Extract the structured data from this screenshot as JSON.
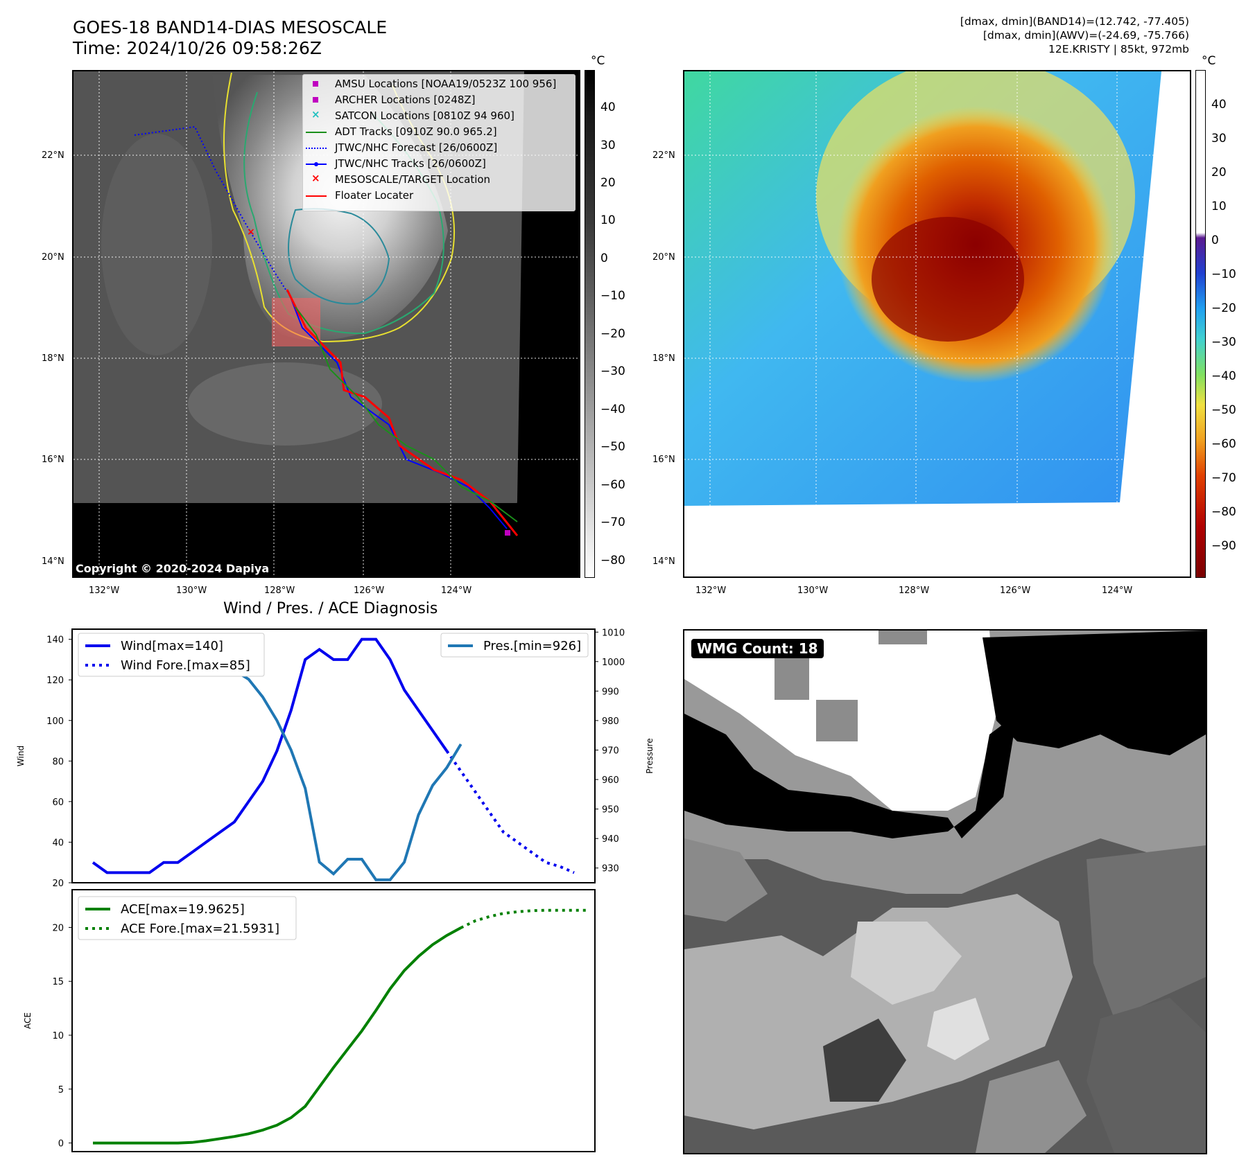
{
  "header": {
    "title_line1": "GOES-18 BAND14-DIAS MESOSCALE",
    "title_line2": "Time: 2024/10/26 09:58:26Z",
    "info_line1": "[dmax, dmin](BAND14)=(12.742, -77.405)",
    "info_line2": "[dmax, dmin](AWV)=(-24.69, -75.766)",
    "info_line3": "12E.KRISTY | 85kt, 972mb"
  },
  "map_axes": {
    "lat_labels": [
      "22°N",
      "20°N",
      "18°N",
      "16°N",
      "14°N"
    ],
    "lon_labels": [
      "132°W",
      "130°W",
      "128°W",
      "126°W",
      "124°W"
    ]
  },
  "ir_map": {
    "copyright": "Copyright © 2020-2024 Dapiya",
    "colorbar_unit": "°C",
    "colorbar_ticks": [
      "40",
      "30",
      "20",
      "10",
      "0",
      "−10",
      "−20",
      "−30",
      "−40",
      "−50",
      "−60",
      "−70",
      "−80"
    ],
    "legend": [
      {
        "label": "AMSU Locations [NOAA19/0523Z 100 956]",
        "marker": "square",
        "color": "#c000c0"
      },
      {
        "label": "ARCHER Locations [0248Z]",
        "marker": "square",
        "color": "#c000c0"
      },
      {
        "label": "SATCON Locations [0810Z 94 960]",
        "marker": "x",
        "color": "#20c0c0"
      },
      {
        "label": "ADT Tracks [0910Z 90.0 965.2]",
        "marker": "line",
        "color": "#1a8f1a"
      },
      {
        "label": "JTWC/NHC Forecast [26/0600Z]",
        "marker": "dotted",
        "color": "#0000ff"
      },
      {
        "label": "JTWC/NHC Tracks [26/0600Z]",
        "marker": "line-dot",
        "color": "#0000ff"
      },
      {
        "label": "MESOSCALE/TARGET Location",
        "marker": "x",
        "color": "#ff0000"
      },
      {
        "label": "Floater Locater",
        "marker": "line",
        "color": "#ff0000"
      }
    ]
  },
  "awv_map": {
    "colorbar_unit": "°C",
    "colorbar_ticks": [
      "40",
      "30",
      "20",
      "10",
      "0",
      "−10",
      "−20",
      "−30",
      "−40",
      "−50",
      "−60",
      "−70",
      "−80",
      "−90"
    ]
  },
  "wmg": {
    "badge": "WMG Count: 18"
  },
  "colors": {
    "wind": "#0000ee",
    "pressure": "#1f77b4",
    "ace": "#008000"
  },
  "chart_data": [
    {
      "type": "line",
      "title": "Wind / Pres. / ACE Diagnosis",
      "ylabel": "Wind",
      "y2label": "Pressure",
      "ylim": [
        20,
        145
      ],
      "y2lim": [
        925,
        1011
      ],
      "yticks": [
        "140",
        "120",
        "100",
        "80",
        "60",
        "40",
        "20"
      ],
      "y2ticks": [
        "1010",
        "1000",
        "990",
        "980",
        "970",
        "960",
        "950",
        "940",
        "930"
      ],
      "legend_left": [
        "Wind[max=140]",
        "Wind Fore.[max=85]"
      ],
      "legend_right": [
        "Pres.[min=926]"
      ],
      "series": [
        {
          "name": "Wind[max=140]",
          "axis": "left",
          "style": "solid",
          "values": [
            30,
            25,
            25,
            25,
            25,
            30,
            30,
            35,
            40,
            45,
            50,
            60,
            70,
            85,
            105,
            130,
            135,
            130,
            130,
            140,
            140,
            130,
            115,
            105,
            95,
            85
          ]
        },
        {
          "name": "Wind Fore.[max=85]",
          "axis": "left",
          "style": "dotted",
          "start": 25,
          "values": [
            85,
            75,
            65,
            55,
            45,
            40,
            35,
            30,
            28,
            25
          ]
        },
        {
          "name": "Pres.[min=926]",
          "axis": "right",
          "style": "solid",
          "values": [
            1006,
            1006,
            1006,
            1007,
            1007,
            1007,
            1005,
            1005,
            1003,
            1000,
            997,
            994,
            988,
            980,
            970,
            957,
            932,
            928,
            933,
            933,
            926,
            926,
            932,
            948,
            958,
            964,
            972
          ]
        }
      ]
    },
    {
      "type": "line",
      "ylabel": "ACE",
      "ylim": [
        -0.8,
        23.5
      ],
      "yticks": [
        "20",
        "15",
        "10",
        "5",
        "0"
      ],
      "legend": [
        "ACE[max=19.9625]",
        "ACE Fore.[max=21.5931]"
      ],
      "series": [
        {
          "name": "ACE[max=19.9625]",
          "style": "solid",
          "values": [
            0,
            0,
            0,
            0,
            0,
            0,
            0,
            0.05,
            0.2,
            0.4,
            0.6,
            0.85,
            1.2,
            1.65,
            2.35,
            3.4,
            5.2,
            7.0,
            8.7,
            10.4,
            12.3,
            14.3,
            16.0,
            17.3,
            18.4,
            19.25,
            19.9625
          ]
        },
        {
          "name": "ACE Fore.[max=21.5931]",
          "style": "dotted",
          "start": 26,
          "values": [
            19.9625,
            20.6,
            21.0,
            21.3,
            21.45,
            21.55,
            21.59,
            21.59,
            21.5931,
            21.5931
          ]
        }
      ]
    }
  ]
}
